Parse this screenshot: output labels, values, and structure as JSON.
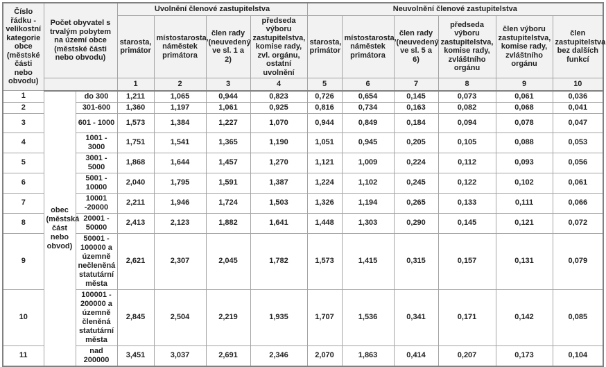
{
  "page": {
    "background": "#ffffff",
    "header_bg": "#f2f2f2",
    "grid_color": "#a3a3a3",
    "outer_border_color": "#808080",
    "text_color": "#222222"
  },
  "table": {
    "corner_header": "Číslo řádku - velikostní kategorie obce (městské části nebo obvodu)",
    "population_header": "Počet obyvatel s trvalým pobytem na území obce (městské části nebo obvodu)",
    "groups": [
      "Uvolnění členové zastupitelstva",
      "Neuvolnění členové zastupitelstva"
    ],
    "columns": [
      "starosta, primátor",
      "místostarosta, náměstek primátora",
      "člen rady (neuvedený ve sl. 1 a 2)",
      "předseda výboru zastupitelstva, komise rady, zvl. orgánu, ostatní uvolnění",
      "starosta, primátor",
      "místostarosta, náměstek primátora",
      "člen rady (neuvedený ve sl. 5 a 6)",
      "předseda výboru zastupitelstva, komise rady, zvláštního orgánu",
      "člen výboru zastupitelstva, komise rady, zvláštního orgánu",
      "člen zastupitelstva bez dalších funkcí"
    ],
    "column_numbers": [
      "1",
      "2",
      "3",
      "4",
      "5",
      "6",
      "7",
      "8",
      "9",
      "10"
    ],
    "municipality_type": "obec (městská část nebo obvod)",
    "rows": [
      {
        "num": "1",
        "population": "do 300",
        "values": [
          "1,211",
          "1,065",
          "0,944",
          "0,823",
          "0,726",
          "0,654",
          "0,145",
          "0,073",
          "0,061",
          "0,036"
        ]
      },
      {
        "num": "2",
        "population": "301-600",
        "values": [
          "1,360",
          "1,197",
          "1,061",
          "0,925",
          "0,816",
          "0,734",
          "0,163",
          "0,082",
          "0,068",
          "0,041"
        ]
      },
      {
        "num": "3",
        "population": "601 - 1000",
        "values": [
          "1,573",
          "1,384",
          "1,227",
          "1,070",
          "0,944",
          "0,849",
          "0,184",
          "0,094",
          "0,078",
          "0,047"
        ]
      },
      {
        "num": "4",
        "population": "1001 - 3000",
        "values": [
          "1,751",
          "1,541",
          "1,365",
          "1,190",
          "1,051",
          "0,945",
          "0,205",
          "0,105",
          "0,088",
          "0,053"
        ]
      },
      {
        "num": "5",
        "population": "3001 - 5000",
        "values": [
          "1,868",
          "1,644",
          "1,457",
          "1,270",
          "1,121",
          "1,009",
          "0,224",
          "0,112",
          "0,093",
          "0,056"
        ]
      },
      {
        "num": "6",
        "population": "5001 - 10000",
        "values": [
          "2,040",
          "1,795",
          "1,591",
          "1,387",
          "1,224",
          "1,102",
          "0,245",
          "0,122",
          "0,102",
          "0,061"
        ]
      },
      {
        "num": "7",
        "population": "10001 -20000",
        "values": [
          "2,211",
          "1,946",
          "1,724",
          "1,503",
          "1,326",
          "1,194",
          "0,265",
          "0,133",
          "0,111",
          "0,066"
        ]
      },
      {
        "num": "8",
        "population": "20001 - 50000",
        "values": [
          "2,413",
          "2,123",
          "1,882",
          "1,641",
          "1,448",
          "1,303",
          "0,290",
          "0,145",
          "0,121",
          "0,072"
        ]
      },
      {
        "num": "9",
        "population": "50001 - 100000 a územně nečleněná statutární města",
        "values": [
          "2,621",
          "2,307",
          "2,045",
          "1,782",
          "1,573",
          "1,415",
          "0,315",
          "0,157",
          "0,131",
          "0,079"
        ]
      },
      {
        "num": "10",
        "population": "100001 - 200000 a územně členěná statutární města",
        "values": [
          "2,845",
          "2,504",
          "2,219",
          "1,935",
          "1,707",
          "1,536",
          "0,341",
          "0,171",
          "0,142",
          "0,085"
        ]
      },
      {
        "num": "11",
        "population": "nad 200000",
        "values": [
          "3,451",
          "3,037",
          "2,691",
          "2,346",
          "2,070",
          "1,863",
          "0,414",
          "0,207",
          "0,173",
          "0,104"
        ]
      }
    ]
  }
}
